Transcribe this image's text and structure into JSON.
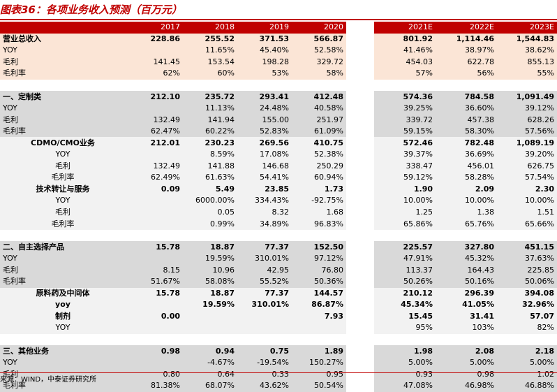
{
  "title": "图表36：各项业务收入预测（百万元）",
  "source": "来源：WIND，中泰证券研究所",
  "header": [
    "",
    "2017",
    "2018",
    "2019",
    "2020",
    "",
    "2021E",
    "2022E",
    "2023E"
  ],
  "colors": {
    "accent": "#c00000",
    "pink": "#fbe5d6",
    "grey": "#d9d9d9",
    "light": "#f2f2f2"
  },
  "rows": [
    {
      "style": "pink bold",
      "align": "lbl",
      "cells": [
        "营业总收入",
        "228.86",
        "255.52",
        "371.53",
        "566.87",
        "801.92",
        "1,114.46",
        "1,544.83"
      ]
    },
    {
      "style": "pink",
      "align": "lbl",
      "cells": [
        "YOY",
        "",
        "11.65%",
        "45.40%",
        "52.58%",
        "41.46%",
        "38.97%",
        "38.62%"
      ]
    },
    {
      "style": "pink",
      "align": "lbl",
      "cells": [
        "毛利",
        "141.45",
        "153.54",
        "198.28",
        "329.72",
        "454.03",
        "622.78",
        "855.13"
      ]
    },
    {
      "style": "pink",
      "align": "lbl",
      "cells": [
        "毛利率",
        "62%",
        "60%",
        "53%",
        "58%",
        "57%",
        "56%",
        "55%"
      ]
    },
    {
      "style": "spacer",
      "align": "lbl",
      "cells": [
        "",
        "",
        "",
        "",
        "",
        "",
        "",
        ""
      ]
    },
    {
      "style": "grey bold",
      "align": "lbl",
      "cells": [
        "一、定制类",
        "212.10",
        "235.72",
        "293.41",
        "412.48",
        "574.36",
        "784.58",
        "1,091.49"
      ]
    },
    {
      "style": "grey",
      "align": "lbl",
      "cells": [
        "YOY",
        "",
        "11.13%",
        "24.48%",
        "40.58%",
        "39.25%",
        "36.60%",
        "39.12%"
      ]
    },
    {
      "style": "grey",
      "align": "lbl",
      "cells": [
        "毛利",
        "132.49",
        "141.94",
        "155.00",
        "251.97",
        "339.72",
        "457.38",
        "628.26"
      ]
    },
    {
      "style": "grey",
      "align": "lbl",
      "cells": [
        "毛利率",
        "62.47%",
        "60.22%",
        "52.83%",
        "61.09%",
        "59.15%",
        "58.30%",
        "57.56%"
      ]
    },
    {
      "style": "light bold",
      "align": "ind",
      "cells": [
        "CDMO/CMO业务",
        "212.01",
        "230.23",
        "269.56",
        "410.75",
        "572.46",
        "782.48",
        "1,089.19"
      ]
    },
    {
      "style": "light",
      "align": "ind",
      "cells": [
        "YOY",
        "",
        "8.59%",
        "17.08%",
        "52.38%",
        "39.37%",
        "36.69%",
        "39.20%"
      ]
    },
    {
      "style": "light",
      "align": "ind",
      "cells": [
        "毛利",
        "132.49",
        "141.88",
        "146.68",
        "250.29",
        "338.47",
        "456.01",
        "626.75"
      ]
    },
    {
      "style": "light",
      "align": "ind",
      "cells": [
        "毛利率",
        "62.49%",
        "61.63%",
        "54.41%",
        "60.94%",
        "59.12%",
        "58.28%",
        "57.54%"
      ]
    },
    {
      "style": "light bold",
      "align": "ind",
      "cells": [
        "技术转让与服务",
        "0.09",
        "5.49",
        "23.85",
        "1.73",
        "1.90",
        "2.09",
        "2.30"
      ]
    },
    {
      "style": "light",
      "align": "ind",
      "cells": [
        "YOY",
        "",
        "6000.00%",
        "334.43%",
        "-92.75%",
        "10.00%",
        "10.00%",
        "10.00%"
      ]
    },
    {
      "style": "light",
      "align": "ind",
      "cells": [
        "毛利",
        "",
        "0.05",
        "8.32",
        "1.68",
        "1.25",
        "1.38",
        "1.51"
      ]
    },
    {
      "style": "light",
      "align": "ind",
      "cells": [
        "毛利率",
        "",
        "0.99%",
        "34.89%",
        "96.83%",
        "65.86%",
        "65.76%",
        "65.66%"
      ]
    },
    {
      "style": "spacer",
      "align": "lbl",
      "cells": [
        "",
        "",
        "",
        "",
        "",
        "",
        "",
        ""
      ]
    },
    {
      "style": "grey bold",
      "align": "lbl",
      "cells": [
        "二、自主选择产品",
        "15.78",
        "18.87",
        "77.37",
        "152.50",
        "225.57",
        "327.80",
        "451.15"
      ]
    },
    {
      "style": "grey",
      "align": "lbl",
      "cells": [
        "YOY",
        "",
        "19.59%",
        "310.01%",
        "97.12%",
        "47.91%",
        "45.32%",
        "37.63%"
      ]
    },
    {
      "style": "grey",
      "align": "lbl",
      "cells": [
        "毛利",
        "8.15",
        "10.96",
        "42.95",
        "76.80",
        "113.37",
        "164.43",
        "225.85"
      ]
    },
    {
      "style": "grey",
      "align": "lbl",
      "cells": [
        "毛利率",
        "51.67%",
        "58.08%",
        "55.52%",
        "50.36%",
        "50.26%",
        "50.16%",
        "50.06%"
      ]
    },
    {
      "style": "light bold",
      "align": "ind",
      "cells": [
        "原料药及中间体",
        "15.78",
        "18.87",
        "77.37",
        "144.57",
        "210.12",
        "296.39",
        "394.08"
      ]
    },
    {
      "style": "light bold",
      "align": "ind",
      "cells": [
        "yoy",
        "",
        "19.59%",
        "310.01%",
        "86.87%",
        "45.34%",
        "41.05%",
        "32.96%"
      ]
    },
    {
      "style": "light bold",
      "align": "ind",
      "cells": [
        "制剂",
        "0.00",
        "",
        "",
        "7.93",
        "15.45",
        "31.41",
        "57.07"
      ]
    },
    {
      "style": "light",
      "align": "ind",
      "cells": [
        "YOY",
        "",
        "",
        "",
        "",
        "95%",
        "103%",
        "82%"
      ]
    },
    {
      "style": "spacer",
      "align": "lbl",
      "cells": [
        "",
        "",
        "",
        "",
        "",
        "",
        "",
        ""
      ]
    },
    {
      "style": "grey bold",
      "align": "lbl",
      "cells": [
        "三、其他业务",
        "0.98",
        "0.94",
        "0.75",
        "1.89",
        "1.98",
        "2.08",
        "2.18"
      ]
    },
    {
      "style": "grey",
      "align": "lbl",
      "cells": [
        "YOY",
        "",
        "-4.67%",
        "-19.54%",
        "150.27%",
        "5.00%",
        "5.00%",
        "5.00%"
      ]
    },
    {
      "style": "grey",
      "align": "lbl",
      "cells": [
        "毛利",
        "0.80",
        "0.64",
        "0.33",
        "0.95",
        "0.93",
        "0.98",
        "1.02"
      ]
    },
    {
      "style": "grey",
      "align": "lbl",
      "cells": [
        "毛利率",
        "81.38%",
        "68.07%",
        "43.62%",
        "50.54%",
        "47.08%",
        "46.98%",
        "46.88%"
      ]
    }
  ]
}
